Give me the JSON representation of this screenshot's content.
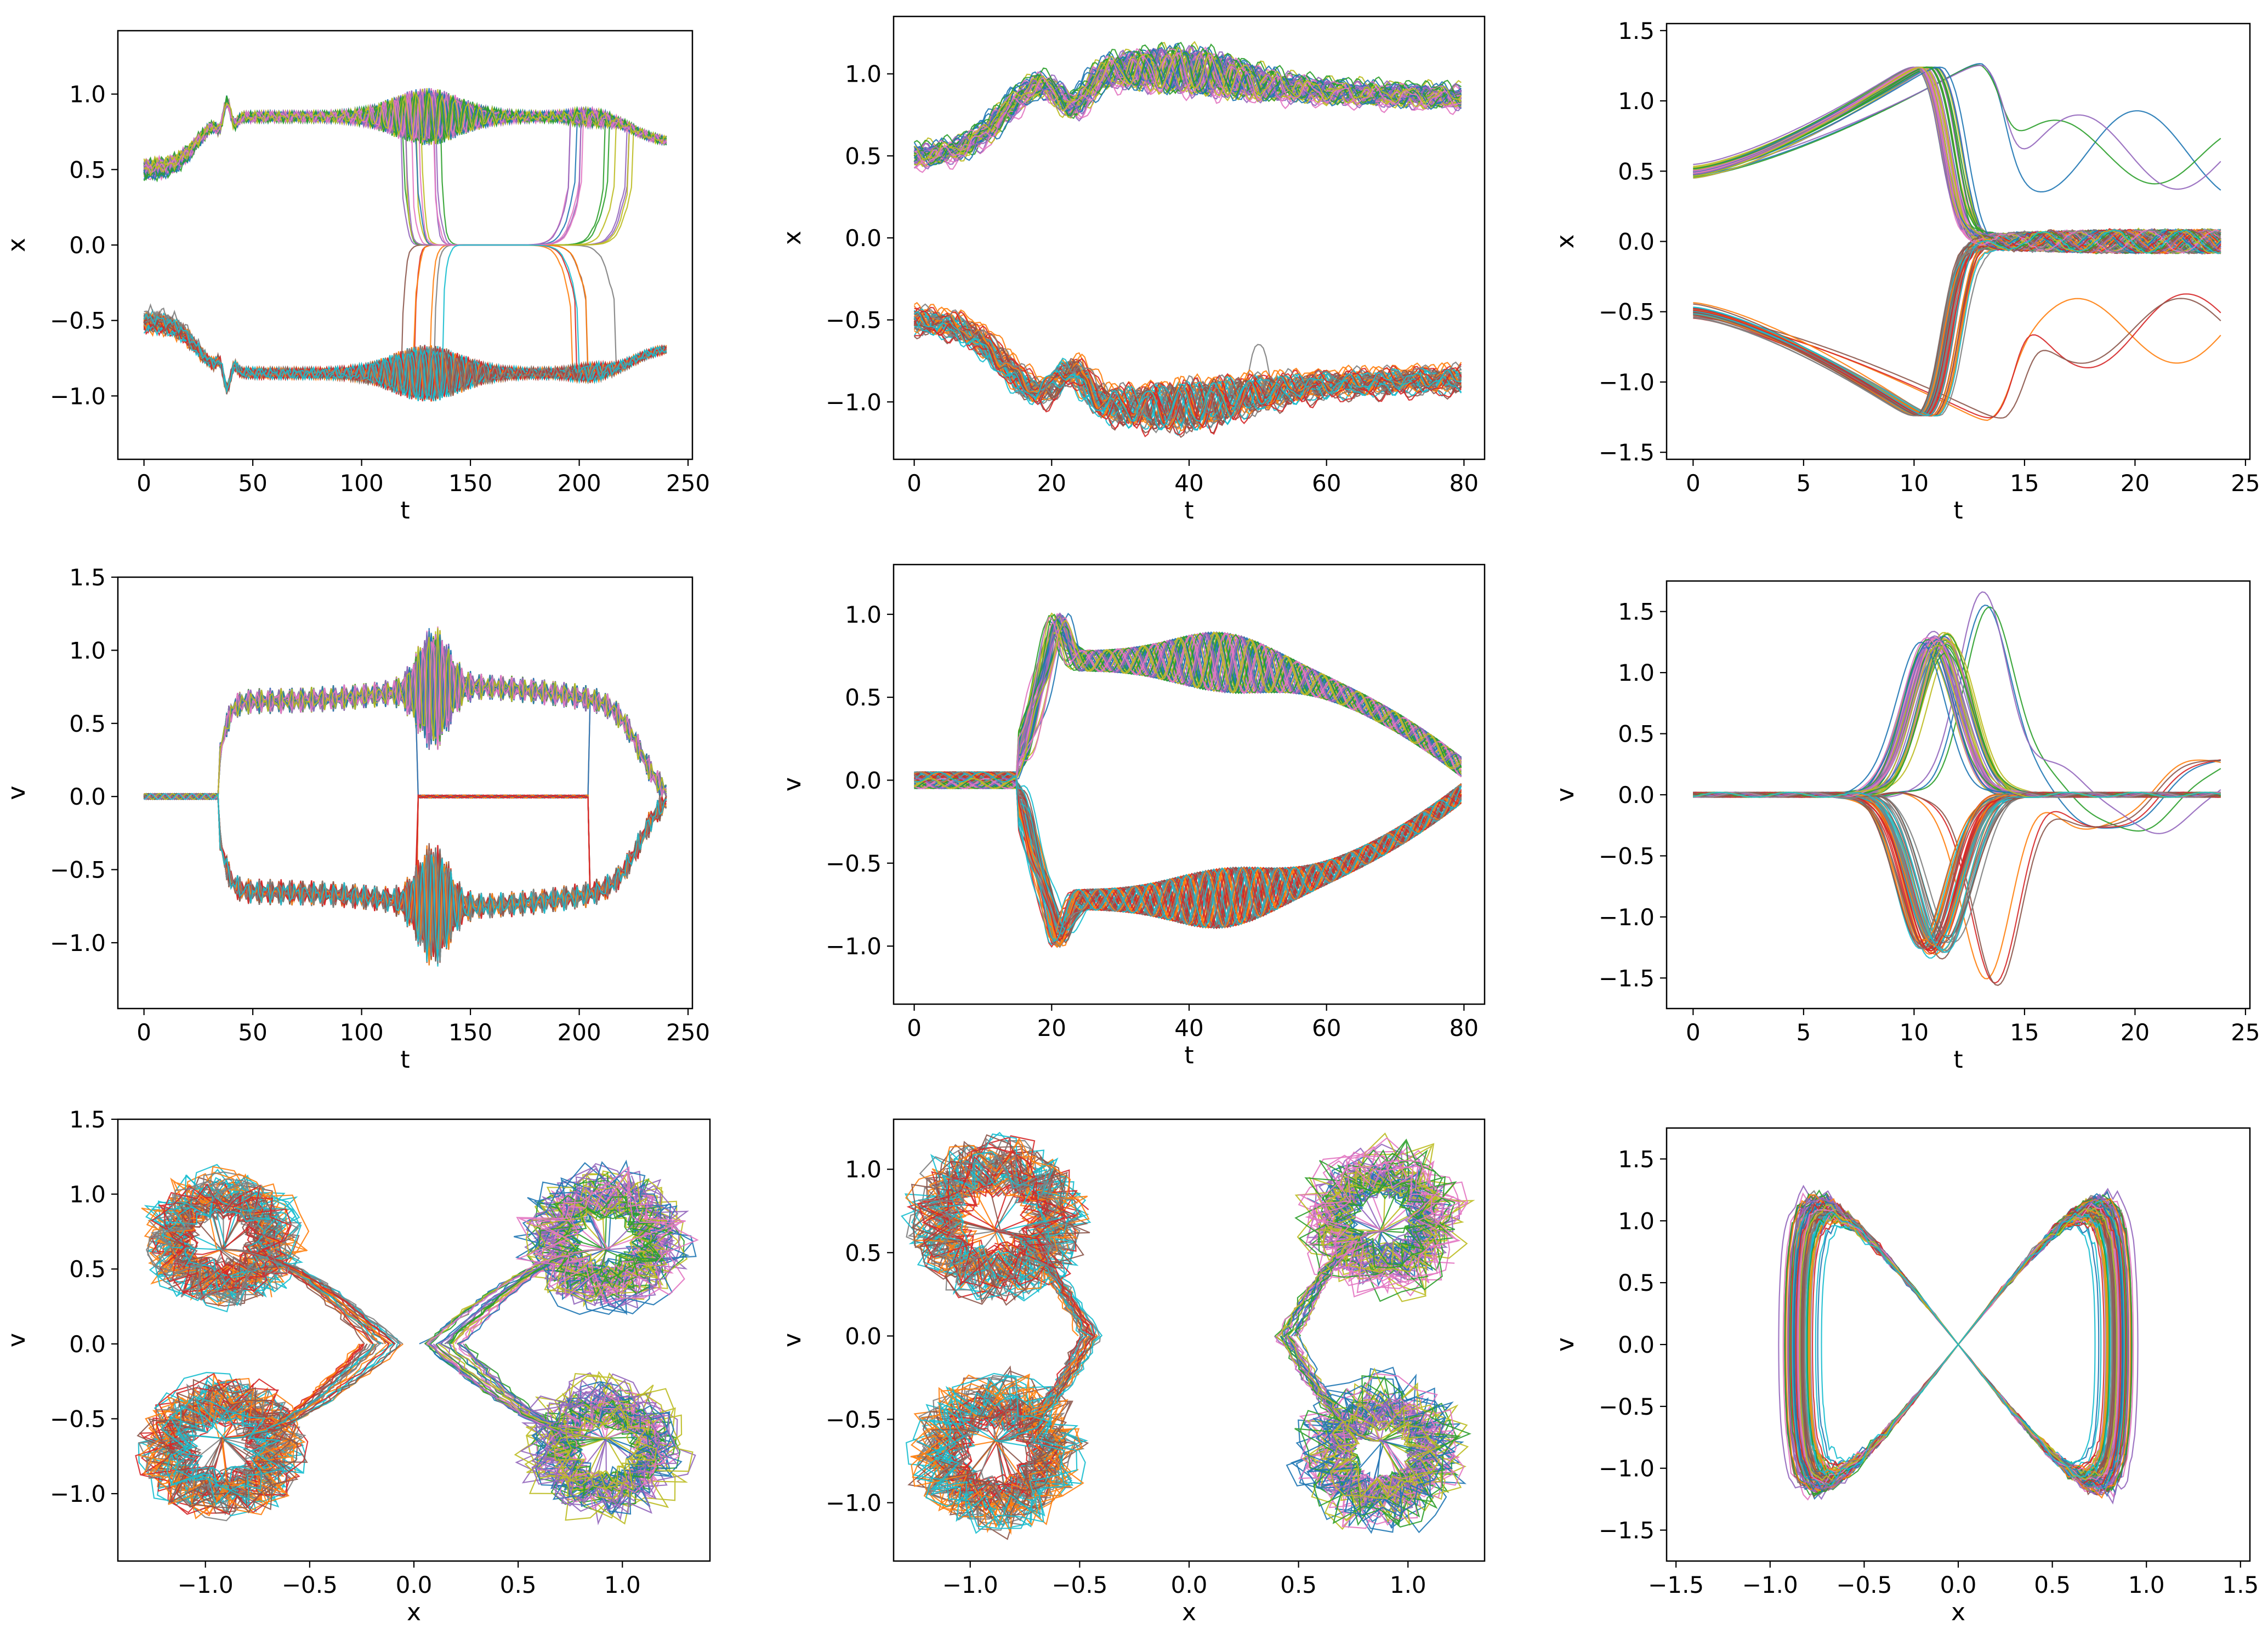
{
  "figure": {
    "title": "",
    "palette": [
      "#1f77b4",
      "#ff7f0e",
      "#2ca02c",
      "#d62728",
      "#9467bd",
      "#8c564b",
      "#e377c2",
      "#7f7f7f",
      "#bcbd22",
      "#17becf"
    ]
  },
  "chart_data": [
    {
      "id": "r1c1",
      "type": "line",
      "xlabel": "t",
      "ylabel": "x",
      "xlim": [
        -12,
        252
      ],
      "ylim": [
        -1.42,
        1.42
      ],
      "xticks": [
        0,
        50,
        100,
        150,
        200,
        250
      ],
      "xtick_labels": [
        "0",
        "50",
        "100",
        "150",
        "200",
        "250"
      ],
      "yticks": [
        -1.0,
        -0.5,
        0.0,
        0.5,
        1.0
      ],
      "ytick_labels": [
        "−1.0",
        "−0.5",
        "0.0",
        "0.5",
        "1.0"
      ],
      "summary": {
        "description": "ensemble of ~100 trajectories; two bands near x=+0.85 and x=-0.85 with switching near t=120 and t=200, a group collapsing to x=0 between t=120 and t=210",
        "series_count": 100,
        "t_range": [
          0,
          240
        ],
        "upper_level": 0.85,
        "lower_level": -0.85,
        "switch_times": [
          120,
          200
        ]
      }
    },
    {
      "id": "r1c2",
      "type": "line",
      "xlabel": "t",
      "ylabel": "x",
      "xlim": [
        -3,
        83
      ],
      "ylim": [
        -1.35,
        1.35
      ],
      "xticks": [
        0,
        20,
        40,
        60,
        80
      ],
      "xtick_labels": [
        "0",
        "20",
        "40",
        "60",
        "80"
      ],
      "yticks": [
        -1.0,
        -0.5,
        0.0,
        0.5,
        1.0
      ],
      "ytick_labels": [
        "−1.0",
        "−0.5",
        "0.0",
        "0.5",
        "1.0"
      ],
      "summary": {
        "description": "two separated bands: upper rising from 0.5 to ~1.1 near t=20 then ~0.95 decaying to 0.7 at t=80; lower mirror image",
        "series_count": 100,
        "t_range": [
          0,
          80
        ]
      }
    },
    {
      "id": "r1c3",
      "type": "line",
      "xlabel": "t",
      "ylabel": "x",
      "xlim": [
        -1.2,
        25.2
      ],
      "ylim": [
        -1.55,
        1.55
      ],
      "xticks": [
        0,
        5,
        10,
        15,
        20,
        25
      ],
      "xtick_labels": [
        "0",
        "5",
        "10",
        "15",
        "20",
        "25"
      ],
      "yticks": [
        -1.5,
        -1.0,
        -0.5,
        0.0,
        0.5,
        1.0,
        1.5
      ],
      "ytick_labels": [
        "−1.5",
        "−1.0",
        "−0.5",
        "0.0",
        "0.5",
        "1.0",
        "1.5"
      ],
      "summary": {
        "description": "trajectories start at +/-0.5, grow to +/-1.3 near t=10-13 then collapse to 0; a few outliers oscillate to +/-0.75",
        "series_count": 100,
        "t_range": [
          0,
          24
        ]
      }
    },
    {
      "id": "r2c1",
      "type": "line",
      "xlabel": "t",
      "ylabel": "v",
      "xlim": [
        -12,
        252
      ],
      "ylim": [
        -1.45,
        1.5
      ],
      "xticks": [
        0,
        50,
        100,
        150,
        200,
        250
      ],
      "xtick_labels": [
        "0",
        "50",
        "100",
        "150",
        "200",
        "250"
      ],
      "yticks": [
        -1.0,
        -0.5,
        0.0,
        0.5,
        1.0,
        1.5
      ],
      "ytick_labels": [
        "−1.0",
        "−0.5",
        "0.0",
        "0.5",
        "1.0",
        "1.5"
      ],
      "summary": {
        "description": "velocity near 0 until t=35, then two bands at +/-0.7 closing to 0 by t=240, heavy oscillation near t=130",
        "series_count": 100,
        "t_range": [
          0,
          240
        ]
      }
    },
    {
      "id": "r2c2",
      "type": "line",
      "xlabel": "t",
      "ylabel": "v",
      "xlim": [
        -3,
        83
      ],
      "ylim": [
        -1.35,
        1.3
      ],
      "xticks": [
        0,
        20,
        40,
        60,
        80
      ],
      "xtick_labels": [
        "0",
        "20",
        "40",
        "60",
        "80"
      ],
      "yticks": [
        -1.0,
        -0.5,
        0.0,
        0.5,
        1.0
      ],
      "ytick_labels": [
        "−1.0",
        "−0.5",
        "0.0",
        "0.5",
        "1.0"
      ],
      "summary": {
        "description": "v near 0 until t=15, then split into bands at +/-0.7 decaying to 0 at t=80",
        "series_count": 100,
        "t_range": [
          0,
          80
        ]
      }
    },
    {
      "id": "r2c3",
      "type": "line",
      "xlabel": "t",
      "ylabel": "v",
      "xlim": [
        -1.2,
        25.2
      ],
      "ylim": [
        -1.75,
        1.75
      ],
      "xticks": [
        0,
        5,
        10,
        15,
        20,
        25
      ],
      "xtick_labels": [
        "0",
        "5",
        "10",
        "15",
        "20",
        "25"
      ],
      "yticks": [
        -1.5,
        -1.0,
        -0.5,
        0.0,
        0.5,
        1.0,
        1.5
      ],
      "ytick_labels": [
        "−1.5",
        "−1.0",
        "−0.5",
        "0.0",
        "0.5",
        "1.0",
        "1.5"
      ],
      "summary": {
        "description": "v near 0 then pulses of +/-1.3 around t=11-14, back to 0 afterwards",
        "series_count": 100,
        "t_range": [
          0,
          24
        ]
      }
    },
    {
      "id": "r3c1",
      "type": "line",
      "xlabel": "x",
      "ylabel": "v",
      "xlim": [
        -1.42,
        1.42
      ],
      "ylim": [
        -1.45,
        1.5
      ],
      "xticks": [
        -1.0,
        -0.5,
        0.0,
        0.5,
        1.0
      ],
      "xtick_labels": [
        "−1.0",
        "−0.5",
        "0.0",
        "0.5",
        "1.0"
      ],
      "yticks": [
        -1.0,
        -0.5,
        0.0,
        0.5,
        1.0,
        1.5
      ],
      "ytick_labels": [
        "−1.0",
        "−0.5",
        "0.0",
        "0.5",
        "1.0",
        "1.5"
      ],
      "summary": {
        "description": "phase portrait: four dense spiral clusters near (+/-0.9, +/-0.7) connected through the origin",
        "series_count": 100
      }
    },
    {
      "id": "r3c2",
      "type": "line",
      "xlabel": "x",
      "ylabel": "v",
      "xlim": [
        -1.35,
        1.35
      ],
      "ylim": [
        -1.35,
        1.3
      ],
      "xticks": [
        -1.0,
        -0.5,
        0.0,
        0.5,
        1.0
      ],
      "xtick_labels": [
        "−1.0",
        "−0.5",
        "0.0",
        "0.5",
        "1.0"
      ],
      "yticks": [
        -1.0,
        -0.5,
        0.0,
        0.5,
        1.0
      ],
      "ytick_labels": [
        "−1.0",
        "−0.5",
        "0.0",
        "0.5",
        "1.0"
      ],
      "summary": {
        "description": "phase portrait: left and right lobes at x=+/-0.85 with spiral clusters at v=+/-0.7, arms reaching toward x=+/-0.4 at v=0",
        "series_count": 100
      }
    },
    {
      "id": "r3c3",
      "type": "line",
      "xlabel": "x",
      "ylabel": "v",
      "xlim": [
        -1.55,
        1.55
      ],
      "ylim": [
        -1.75,
        1.75
      ],
      "xticks": [
        -1.5,
        -1.0,
        -0.5,
        0.0,
        0.5,
        1.0,
        1.5
      ],
      "xtick_labels": [
        "−1.5",
        "−1.0",
        "−0.5",
        "0.0",
        "0.5",
        "1.0",
        "1.5"
      ],
      "yticks": [
        -1.5,
        -1.0,
        -0.5,
        0.0,
        0.5,
        1.0,
        1.5
      ],
      "ytick_labels": [
        "−1.5",
        "−1.0",
        "−0.5",
        "0.0",
        "0.5",
        "1.0",
        "1.5"
      ],
      "summary": {
        "description": "phase portrait: bow-tie shaped loops through the origin with lobes at (+/-1, +/-1.1)",
        "series_count": 100
      }
    }
  ]
}
